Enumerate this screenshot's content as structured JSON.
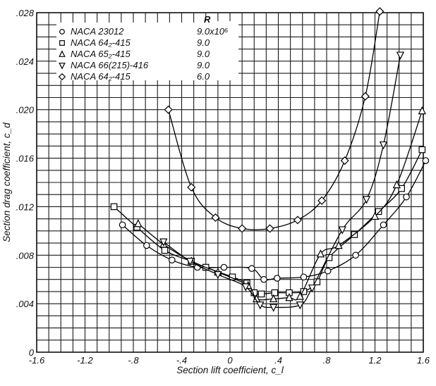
{
  "chart_data": {
    "type": "line",
    "title": "",
    "xlabel": "Section lift coefficient, c_l",
    "ylabel": "Section drag coefficient, c_d",
    "xlim": [
      -1.6,
      1.6
    ],
    "ylim": [
      0,
      0.028
    ],
    "x_ticks": [
      -1.6,
      -1.2,
      -0.8,
      -0.4,
      0,
      0.4,
      0.8,
      1.2,
      1.6
    ],
    "x_tick_labels": [
      "-1.6",
      "-1.2",
      "-.8",
      "-.4",
      "0",
      ".4",
      ".8",
      "1.2",
      "1.6"
    ],
    "y_ticks": [
      0,
      0.004,
      0.008,
      0.012,
      0.016,
      0.02,
      0.024,
      0.028
    ],
    "y_tick_labels": [
      "0",
      ".004",
      ".008",
      ".012",
      ".016",
      ".020",
      ".024",
      ".028"
    ],
    "grid": true,
    "grid_minor_x": 0.1,
    "grid_minor_y": 0.001,
    "legend": {
      "position": "upper-left",
      "column_header": "R",
      "entries": [
        {
          "label": "NACA 23012",
          "marker": "circle",
          "R": "9.0x10⁶"
        },
        {
          "label": "NACA 64₂-415",
          "marker": "square",
          "R": "9.0"
        },
        {
          "label": "NACA 65₂-415",
          "marker": "triangle-up",
          "R": "9.0"
        },
        {
          "label": "NACA 66(215)-416",
          "marker": "triangle-down",
          "R": "9.0"
        },
        {
          "label": "NACA 64₂-415",
          "marker": "diamond",
          "R": "6.0"
        }
      ]
    },
    "series": [
      {
        "name": "NACA 23012",
        "marker": "circle",
        "R": "9.0x10^6",
        "x": [
          -0.89,
          -0.69,
          -0.48,
          -0.27,
          -0.05,
          0.18,
          0.28,
          0.39,
          0.61,
          0.81,
          1.04,
          1.27,
          1.46,
          1.62
        ],
        "y": [
          0.0105,
          0.0088,
          0.0076,
          0.007,
          0.007,
          0.0069,
          0.006,
          0.0061,
          0.0062,
          0.0067,
          0.008,
          0.0105,
          0.0128,
          0.0158
        ]
      },
      {
        "name": "NACA 64₂-415",
        "marker": "square",
        "R": "9.0",
        "x": [
          -0.96,
          -0.77,
          -0.54,
          -0.32,
          -0.2,
          0.02,
          0.14,
          0.2,
          0.26,
          0.37,
          0.49,
          0.61,
          0.72,
          0.82,
          1.03,
          1.23,
          1.42,
          1.59
        ],
        "y": [
          0.012,
          0.0103,
          0.0084,
          0.0075,
          0.007,
          0.0062,
          0.0057,
          0.0049,
          0.0048,
          0.0049,
          0.0049,
          0.005,
          0.0058,
          0.0078,
          0.0097,
          0.0116,
          0.0135,
          0.0167
        ]
      },
      {
        "name": "NACA 65₂-415",
        "marker": "triangle-up",
        "R": "9.0",
        "x": [
          -0.76,
          -0.55,
          -0.32,
          -0.1,
          0.15,
          0.22,
          0.36,
          0.49,
          0.58,
          0.75,
          0.9,
          1.2,
          1.38,
          1.59
        ],
        "y": [
          0.0106,
          0.0089,
          0.0075,
          0.0066,
          0.0055,
          0.0044,
          0.0044,
          0.0045,
          0.0046,
          0.0081,
          0.0088,
          0.0112,
          0.0138,
          0.0199
        ]
      },
      {
        "name": "NACA 66(215)-416",
        "marker": "triangle-down",
        "R": "9.0",
        "x": [
          -0.55,
          -0.33,
          -0.1,
          0.13,
          0.25,
          0.36,
          0.58,
          0.68,
          0.93,
          1.13,
          1.27,
          1.41
        ],
        "y": [
          0.0091,
          0.0075,
          0.0064,
          0.0054,
          0.0039,
          0.0037,
          0.0039,
          0.0053,
          0.0101,
          0.0126,
          0.0171,
          0.0245
        ]
      },
      {
        "name": "NACA 64₂-415",
        "marker": "diamond",
        "R": "6.0",
        "x": [
          -0.51,
          -0.32,
          -0.12,
          0.1,
          0.33,
          0.56,
          0.76,
          0.95,
          1.12,
          1.24
        ],
        "y": [
          0.02,
          0.0136,
          0.0111,
          0.0102,
          0.0102,
          0.0109,
          0.0125,
          0.0158,
          0.0211,
          0.0281
        ]
      }
    ]
  }
}
